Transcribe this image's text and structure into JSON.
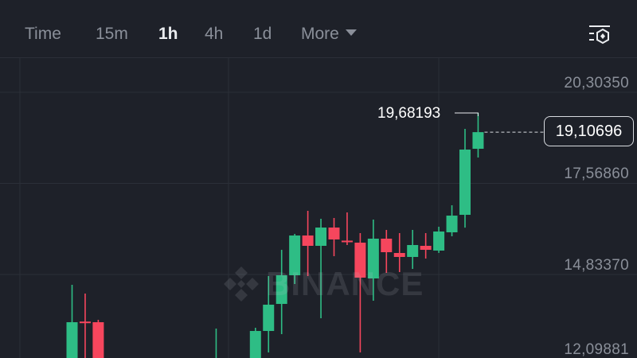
{
  "toolbar": {
    "tabs": [
      {
        "label": "Time",
        "active": false
      },
      {
        "label": "15m",
        "active": false
      },
      {
        "label": "1h",
        "active": true
      },
      {
        "label": "4h",
        "active": false
      },
      {
        "label": "1d",
        "active": false
      },
      {
        "label": "More",
        "active": false
      }
    ],
    "settings_icon": "chart-settings-icon"
  },
  "watermark": "BINANCE",
  "colors": {
    "up": "#2ebd85",
    "down": "#f6465d",
    "background": "#1e2129",
    "grid": "#2b2f38"
  },
  "chart_data": {
    "type": "candlestick",
    "y_ticks": [
      "20,30350",
      "17,56860",
      "14,83370",
      "12,09881"
    ],
    "y_tick_values": [
      20.3035,
      17.5686,
      14.8337,
      12.09881
    ],
    "high_label": "19,68193",
    "current_price_label": "19,10696",
    "current_price": 19.10696,
    "candles": [
      {
        "o": 11.8,
        "h": 14.524,
        "l": 11.6,
        "c": 13.401
      },
      {
        "o": 13.42,
        "h": 14.261,
        "l": 11.6,
        "c": 13.4
      },
      {
        "o": 13.401,
        "h": 13.473,
        "l": 11.6,
        "c": 11.8
      },
      null,
      null,
      null,
      null,
      null,
      null,
      null,
      null,
      {
        "o": 11.5,
        "h": 13.21,
        "l": 11.4,
        "c": 11.9
      },
      null,
      null,
      {
        "o": 11.8,
        "h": 13.234,
        "l": 11.6,
        "c": 13.138
      },
      {
        "o": 13.138,
        "h": 14.786,
        "l": 12.493,
        "c": 13.927
      },
      {
        "o": 13.95,
        "h": 15.574,
        "l": 13.043,
        "c": 14.81
      },
      {
        "o": 14.81,
        "h": 16.052,
        "l": 14.548,
        "c": 16.004
      },
      {
        "o": 16.004,
        "h": 16.745,
        "l": 14.786,
        "c": 15.694
      },
      {
        "o": 15.694,
        "h": 16.506,
        "l": 13.52,
        "c": 16.243
      },
      {
        "o": 16.243,
        "h": 16.53,
        "l": 15.383,
        "c": 15.885
      },
      {
        "o": 15.85,
        "h": 16.697,
        "l": 15.718,
        "c": 15.83
      },
      {
        "o": 15.789,
        "h": 16.076,
        "l": 12.493,
        "c": 14.739
      },
      {
        "o": 14.715,
        "h": 16.482,
        "l": 14.046,
        "c": 15.909
      },
      {
        "o": 15.909,
        "h": 16.172,
        "l": 14.882,
        "c": 15.503
      },
      {
        "o": 15.479,
        "h": 16.076,
        "l": 14.906,
        "c": 15.36
      },
      {
        "o": 15.36,
        "h": 16.172,
        "l": 15.001,
        "c": 15.718
      },
      {
        "o": 15.694,
        "h": 16.076,
        "l": 15.312,
        "c": 15.574
      },
      {
        "o": 15.551,
        "h": 16.267,
        "l": 15.481,
        "c": 16.124
      },
      {
        "o": 16.1,
        "h": 16.912,
        "l": 15.981,
        "c": 16.601
      },
      {
        "o": 16.625,
        "h": 19.205,
        "l": 16.24,
        "c": 18.584
      },
      {
        "o": 18.608,
        "h": 19.682,
        "l": 18.345,
        "c": 19.107
      }
    ],
    "grid": true
  }
}
